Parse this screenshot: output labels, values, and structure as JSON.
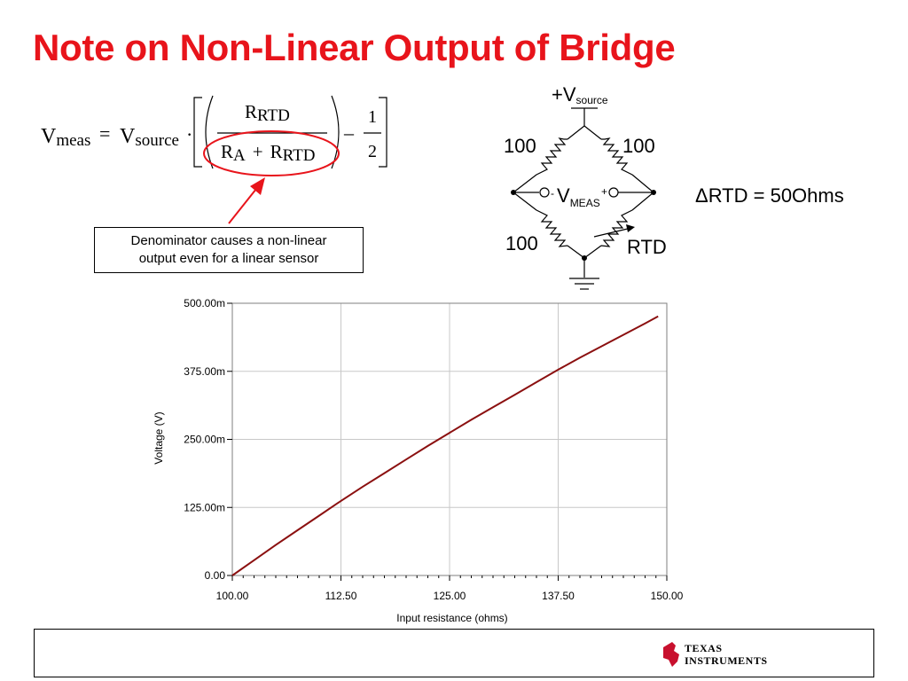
{
  "title": "Note on Non-Linear Output of Bridge",
  "equation": {
    "v": "V",
    "meas": "meas",
    "equals": "=",
    "source": "source",
    "dot": "·",
    "r": "R",
    "rtd": "RTD",
    "a": "A",
    "plus": "+",
    "minus": "–",
    "one": "1",
    "two": "2"
  },
  "callout": {
    "line1": "Denominator causes a non-linear",
    "line2": "output even for a linear sensor"
  },
  "bridge": {
    "plus_sign": "+",
    "v": "V",
    "source_sub": "source",
    "r_top_left": "100",
    "r_top_right": "100",
    "r_bottom_left": "100",
    "rtd_label": "RTD",
    "vmeas_sub": "MEAS",
    "minus_term": "-",
    "plus_term": "+"
  },
  "delta_note": "ΔRTD = 50Ohms",
  "logo": {
    "line1": "Texas",
    "line2": "Instruments"
  },
  "colors": {
    "title": "#e8141b",
    "trace": "#8b1010",
    "ellipse": "#e8141b",
    "logo": "#c8102e"
  },
  "chart_data": {
    "type": "line",
    "xlabel": "Input resistance (ohms)",
    "ylabel": "Voltage (V)",
    "xlim": [
      100,
      150
    ],
    "ylim": [
      0,
      0.5
    ],
    "x_ticks": [
      "100.00",
      "112.50",
      "125.00",
      "137.50",
      "150.00"
    ],
    "y_ticks": [
      "0.00",
      "125.00m",
      "250.00m",
      "375.00m",
      "500.00m"
    ],
    "grid": true,
    "series": [
      {
        "x": [
          100,
          102.5,
          105,
          107.5,
          110,
          112.5,
          115,
          117.5,
          120,
          122.5,
          125,
          127.5,
          130,
          132.5,
          135,
          137.5,
          140,
          142.5,
          145,
          147.5,
          149
        ],
        "values": [
          0,
          0.028,
          0.056,
          0.083,
          0.11,
          0.137,
          0.163,
          0.188,
          0.213,
          0.238,
          0.262,
          0.286,
          0.309,
          0.332,
          0.355,
          0.378,
          0.4,
          0.421,
          0.442,
          0.463,
          0.476
        ]
      }
    ]
  }
}
